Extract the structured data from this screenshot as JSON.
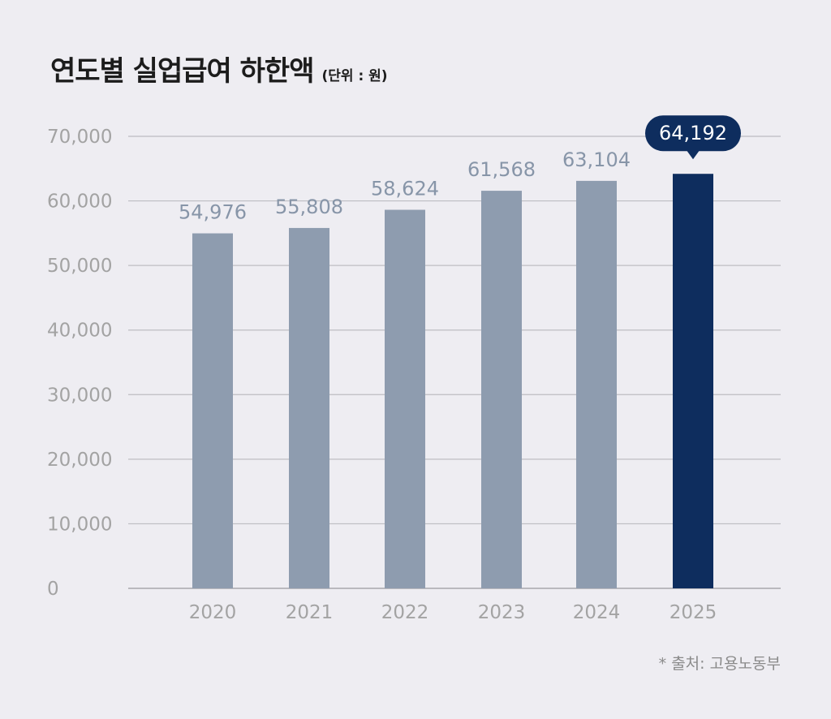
{
  "header": {
    "title": "연도별 실업급여 하한액",
    "unit": "(단위 : 원)"
  },
  "chart_data": {
    "type": "bar",
    "categories": [
      "2020",
      "2021",
      "2022",
      "2023",
      "2024",
      "2025"
    ],
    "values": [
      54976,
      55808,
      58624,
      61568,
      63104,
      64192
    ],
    "value_labels": [
      "54,976",
      "55,808",
      "58,624",
      "61,568",
      "63,104",
      "64,192"
    ],
    "title": "연도별 실업급여 하한액",
    "xlabel": "",
    "ylabel": "",
    "ylim": [
      0,
      70000
    ],
    "yticks": [
      0,
      10000,
      20000,
      30000,
      40000,
      50000,
      60000,
      70000
    ],
    "ytick_labels": [
      "0",
      "10,000",
      "20,000",
      "30,000",
      "40,000",
      "50,000",
      "60,000",
      "70,000"
    ],
    "grid": true,
    "highlight_index": 5,
    "colors": {
      "bar": "#8e9caf",
      "highlight": "#0e2d5e",
      "value_label": "#8795a8",
      "grid": "#bdbdc2",
      "axis_label": "#a3a3a3"
    }
  },
  "footer": {
    "source": "* 출처: 고용노동부"
  }
}
